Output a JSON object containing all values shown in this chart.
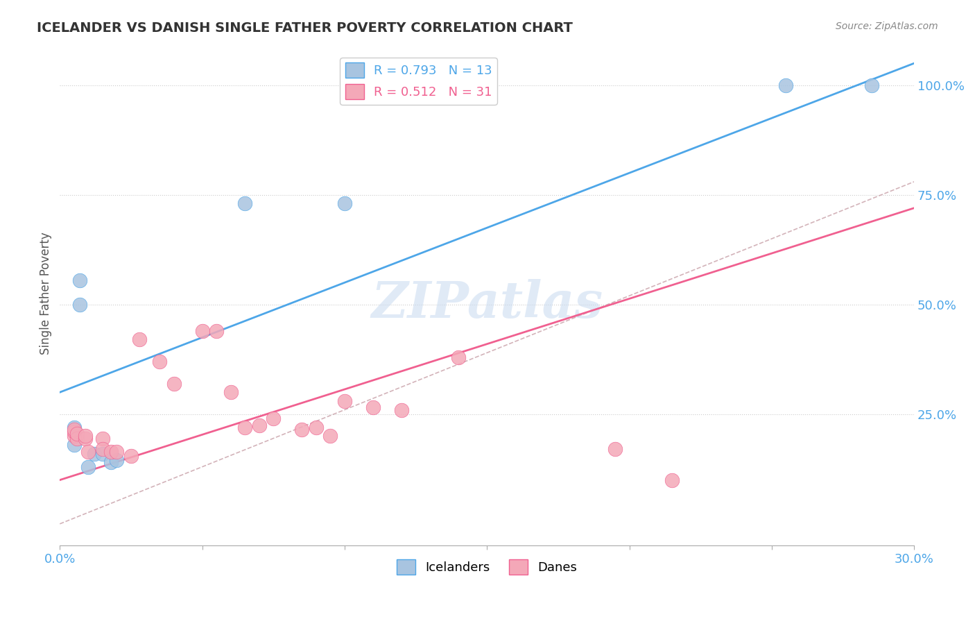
{
  "title": "ICELANDER VS DANISH SINGLE FATHER POVERTY CORRELATION CHART",
  "source": "Source: ZipAtlas.com",
  "ylabel": "Single Father Poverty",
  "ytick_labels": [
    "100.0%",
    "75.0%",
    "50.0%",
    "25.0%"
  ],
  "ytick_values": [
    1.0,
    0.75,
    0.5,
    0.25
  ],
  "xlim": [
    0.0,
    0.3
  ],
  "ylim": [
    -0.05,
    1.1
  ],
  "icelander_color": "#a8c4e0",
  "dane_color": "#f4a8b8",
  "icelander_line_color": "#4da6e8",
  "dane_line_color": "#f06090",
  "diagonal_color": "#c8a0a8",
  "icelander_points": [
    [
      0.005,
      0.18
    ],
    [
      0.005,
      0.22
    ],
    [
      0.007,
      0.5
    ],
    [
      0.007,
      0.555
    ],
    [
      0.01,
      0.13
    ],
    [
      0.012,
      0.16
    ],
    [
      0.015,
      0.16
    ],
    [
      0.018,
      0.14
    ],
    [
      0.02,
      0.145
    ],
    [
      0.065,
      0.73
    ],
    [
      0.1,
      0.73
    ],
    [
      0.255,
      1.0
    ],
    [
      0.285,
      1.0
    ]
  ],
  "dane_points": [
    [
      0.005,
      0.2
    ],
    [
      0.005,
      0.21
    ],
    [
      0.005,
      0.215
    ],
    [
      0.006,
      0.195
    ],
    [
      0.006,
      0.205
    ],
    [
      0.009,
      0.195
    ],
    [
      0.009,
      0.2
    ],
    [
      0.01,
      0.165
    ],
    [
      0.015,
      0.195
    ],
    [
      0.015,
      0.17
    ],
    [
      0.018,
      0.165
    ],
    [
      0.02,
      0.165
    ],
    [
      0.025,
      0.155
    ],
    [
      0.028,
      0.42
    ],
    [
      0.035,
      0.37
    ],
    [
      0.04,
      0.32
    ],
    [
      0.05,
      0.44
    ],
    [
      0.055,
      0.44
    ],
    [
      0.06,
      0.3
    ],
    [
      0.065,
      0.22
    ],
    [
      0.07,
      0.225
    ],
    [
      0.075,
      0.24
    ],
    [
      0.085,
      0.215
    ],
    [
      0.09,
      0.22
    ],
    [
      0.095,
      0.2
    ],
    [
      0.1,
      0.28
    ],
    [
      0.11,
      0.265
    ],
    [
      0.12,
      0.26
    ],
    [
      0.14,
      0.38
    ],
    [
      0.195,
      0.17
    ],
    [
      0.215,
      0.1
    ]
  ],
  "iceland_line": {
    "x0": 0.0,
    "y0": 0.3,
    "x1": 0.3,
    "y1": 1.05
  },
  "dane_line": {
    "x0": 0.0,
    "y0": 0.1,
    "x1": 0.3,
    "y1": 0.72
  },
  "diag_line": {
    "x0": 0.0,
    "y0": 0.0,
    "x1": 0.3,
    "y1": 0.78
  }
}
